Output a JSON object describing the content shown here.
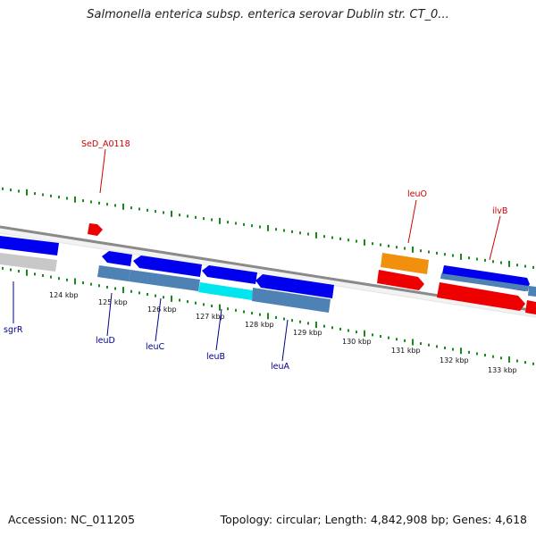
{
  "title": "Salmonella enterica subsp. enterica serovar Dublin str. CT_0...",
  "footer": {
    "accession": "Accession: NC_011205",
    "summary": "Topology: circular; Length: 4,842,908 bp; Genes: 4,618"
  },
  "colors": {
    "background": "#ffffff",
    "backbone": "#808080",
    "gc_ticks": "#1a8a1a",
    "forward_cds": "#0000ee",
    "reverse_cds": "#ee0000",
    "gene_blue": "#4f82b4",
    "gene_cyan": "#00e5ee",
    "gene_orange": "#f0900c",
    "gene_gray": "#bfbfbf",
    "label_blue": "#00008b",
    "label_red": "#cc0000"
  },
  "scale": {
    "unit": "kbp",
    "ticks": [
      "124 kbp",
      "125 kbp",
      "126 kbp",
      "127 kbp",
      "128 kbp",
      "129 kbp",
      "130 kbp",
      "131 kbp",
      "132 kbp",
      "133 kbp"
    ]
  },
  "labels": {
    "top": [
      "SeD_A0118",
      "leuO",
      "ilvB"
    ],
    "bottom": [
      "sgrR",
      "leuD",
      "leuC",
      "leuB",
      "leuA"
    ]
  }
}
